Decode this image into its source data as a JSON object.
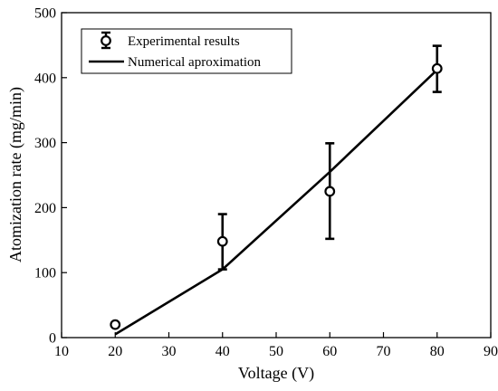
{
  "chart_data": {
    "type": "scatter",
    "title": "",
    "xlabel": "Voltage (V)",
    "ylabel": "Atomization rate (mg/min)",
    "xlim": [
      10,
      90
    ],
    "ylim": [
      0,
      500
    ],
    "xticks": [
      10,
      20,
      30,
      40,
      50,
      60,
      70,
      80,
      90
    ],
    "yticks": [
      0,
      100,
      200,
      300,
      400,
      500
    ],
    "grid": false,
    "legend_position": "top-left",
    "series": [
      {
        "name": "Experimental results",
        "kind": "errorbar",
        "marker": "open-circle",
        "color": "#000000",
        "x": [
          20,
          40,
          60,
          80
        ],
        "y": [
          20,
          148,
          225,
          414
        ],
        "yerr_low": [
          20,
          105,
          152,
          378
        ],
        "yerr_high": [
          20,
          190,
          299,
          449
        ]
      },
      {
        "name": "Numerical aproximation",
        "kind": "line",
        "color": "#000000",
        "x": [
          20,
          40,
          60,
          80
        ],
        "y": [
          5,
          105,
          255,
          412
        ]
      }
    ]
  }
}
